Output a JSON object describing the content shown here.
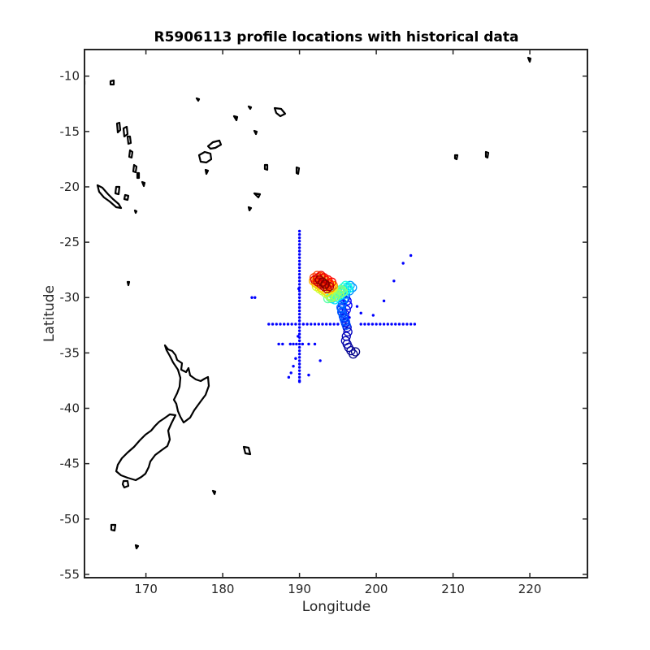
{
  "chart_data": {
    "type": "scatter",
    "title": "R5906113 profile locations with historical data",
    "xlabel": "Longitude",
    "ylabel": "Latitude",
    "xlim": [
      162,
      227.5
    ],
    "ylim": [
      -55.3,
      -7.6
    ],
    "xticks": [
      170,
      180,
      190,
      200,
      210,
      220
    ],
    "yticks": [
      -10,
      -15,
      -20,
      -25,
      -30,
      -35,
      -40,
      -45,
      -50,
      -55
    ],
    "grid": false,
    "colors": {
      "historical": "#0000ff",
      "coastline": "#000000",
      "colormap": "jet"
    },
    "series": [
      {
        "role": "historical",
        "style": "dot",
        "x": [
          190,
          190,
          190,
          190,
          190,
          190,
          190,
          190,
          190,
          190,
          190,
          190,
          190,
          190,
          190,
          190,
          190,
          190,
          190,
          190,
          190,
          190,
          190,
          190,
          190,
          190,
          190,
          190,
          190,
          190,
          190,
          190,
          190,
          190,
          190,
          190,
          190,
          190,
          190,
          190,
          190,
          190,
          190,
          190,
          190,
          190,
          190,
          186,
          186.5,
          187,
          187.5,
          188,
          188.5,
          189,
          189.5,
          190.5,
          191,
          191.5,
          192,
          192.5,
          193,
          193.5,
          194,
          194.5,
          195,
          198,
          198.5,
          199,
          199.5,
          200,
          200.5,
          201,
          201.5,
          202,
          202.5,
          203,
          203.5,
          204,
          204.5,
          205,
          204.5,
          203.5,
          202.3,
          201,
          199.6,
          183.8,
          184.2,
          187.3,
          187.8,
          188.8,
          189.2,
          189.6,
          190.4,
          191.2,
          192,
          189.8,
          189.5,
          189.2,
          188.9,
          188.6,
          191.2,
          192.7,
          198,
          189.9,
          196.5,
          197.5
        ],
        "y": [
          -24,
          -24.3,
          -24.6,
          -24.9,
          -25.2,
          -25.5,
          -25.8,
          -26.1,
          -26.4,
          -26.7,
          -27,
          -27.3,
          -27.6,
          -27.9,
          -28.2,
          -28.5,
          -28.8,
          -29.1,
          -29.4,
          -29.7,
          -30,
          -30.3,
          -30.6,
          -30.9,
          -31.2,
          -31.5,
          -31.8,
          -32.1,
          -32.4,
          -32.7,
          -33,
          -33.3,
          -33.6,
          -33.9,
          -34.2,
          -34.5,
          -34.8,
          -35.1,
          -35.4,
          -35.7,
          -36,
          -36.3,
          -36.6,
          -36.9,
          -37.2,
          -37.5,
          -37.6,
          -32.4,
          -32.4,
          -32.4,
          -32.4,
          -32.4,
          -32.4,
          -32.4,
          -32.4,
          -32.4,
          -32.4,
          -32.4,
          -32.4,
          -32.4,
          -32.4,
          -32.4,
          -32.4,
          -32.4,
          -32.4,
          -32.4,
          -32.4,
          -32.4,
          -32.4,
          -32.4,
          -32.4,
          -32.4,
          -32.4,
          -32.4,
          -32.4,
          -32.4,
          -32.4,
          -32.4,
          -32.4,
          -32.4,
          -26.2,
          -26.9,
          -28.5,
          -30.3,
          -31.6,
          -30,
          -30,
          -34.2,
          -34.2,
          -34.2,
          -34.2,
          -34.2,
          -34.2,
          -34.2,
          -34.2,
          -33.5,
          -35.5,
          -36.2,
          -36.8,
          -37.2,
          -37,
          -35.7,
          -31.4,
          -29.2,
          -31.8,
          -30.8
        ]
      },
      {
        "role": "profiles",
        "style": "open-circle",
        "colormap_value_meaning": "profile index (blue = early, red = late)",
        "x": [
          197.3,
          197.0,
          196.7,
          196.4,
          196.2,
          196.0,
          196.1,
          196.3,
          196.2,
          196.0,
          195.8,
          195.9,
          196.1,
          196.3,
          196.2,
          196.0,
          195.8,
          195.6,
          195.5,
          195.6,
          195.8,
          196.0,
          196.1,
          195.9,
          195.7,
          195.5,
          195.4,
          195.6,
          195.8,
          196.0,
          196.5,
          196.9,
          196.6,
          196.2,
          195.8,
          195.4,
          195.0,
          194.6,
          194.2,
          194.6,
          194.9,
          195.3,
          195.6,
          196.0,
          196.4,
          196.3,
          196.0,
          195.7,
          195.3,
          194.9,
          194.5,
          194.1,
          193.7,
          194.0,
          194.4,
          194.8,
          195.2,
          195.5,
          195.7,
          195.2,
          194.7,
          194.2,
          193.8,
          193.4,
          193.0,
          192.6,
          192.2,
          192.6,
          193.0,
          193.5,
          193.9,
          194.2,
          194.4,
          194.0,
          193.6,
          193.2,
          192.8,
          192.5,
          192.1,
          191.8,
          192.2,
          192.6,
          193.0,
          193.4,
          193.7,
          194.1,
          194.4,
          193.9,
          193.5,
          193.1,
          192.7,
          192.3,
          191.9,
          192.3,
          192.7,
          193.1,
          193.5,
          193.9,
          194.2,
          193.7,
          193.2,
          192.8,
          192.4,
          192.0,
          192.4,
          192.8,
          193.2,
          193.6,
          193.9,
          193.4,
          193.0,
          192.6,
          193.0,
          193.3
        ],
        "y": [
          -34.9,
          -35.1,
          -34.8,
          -34.5,
          -34.2,
          -33.9,
          -33.5,
          -33.1,
          -32.7,
          -32.3,
          -31.9,
          -31.5,
          -31.1,
          -30.7,
          -30.3,
          -30.0,
          -30.2,
          -30.6,
          -31.0,
          -31.4,
          -31.8,
          -32.2,
          -32.5,
          -32.1,
          -31.7,
          -31.3,
          -30.9,
          -30.5,
          -30.1,
          -29.7,
          -29.4,
          -29.1,
          -28.9,
          -29.1,
          -29.3,
          -29.5,
          -29.7,
          -29.9,
          -30.1,
          -30.2,
          -30.0,
          -29.8,
          -29.6,
          -29.4,
          -29.2,
          -29.0,
          -28.9,
          -29.1,
          -29.3,
          -29.5,
          -29.7,
          -29.9,
          -30.1,
          -30.0,
          -29.8,
          -29.6,
          -29.4,
          -29.3,
          -29.5,
          -29.7,
          -29.9,
          -30.0,
          -29.8,
          -29.6,
          -29.4,
          -29.2,
          -29.0,
          -28.8,
          -28.6,
          -28.5,
          -28.7,
          -28.9,
          -29.1,
          -29.3,
          -29.5,
          -29.3,
          -29.1,
          -28.9,
          -28.7,
          -28.5,
          -28.4,
          -28.3,
          -28.5,
          -28.7,
          -28.9,
          -29.1,
          -28.9,
          -28.7,
          -28.5,
          -28.3,
          -28.1,
          -28.0,
          -28.2,
          -28.4,
          -28.6,
          -28.8,
          -29.0,
          -28.8,
          -28.6,
          -28.4,
          -28.2,
          -28.0,
          -28.2,
          -28.4,
          -28.6,
          -28.8,
          -29.0,
          -29.2,
          -29.0,
          -28.8,
          -28.6,
          -28.4,
          -28.6,
          -28.8
        ]
      }
    ]
  }
}
